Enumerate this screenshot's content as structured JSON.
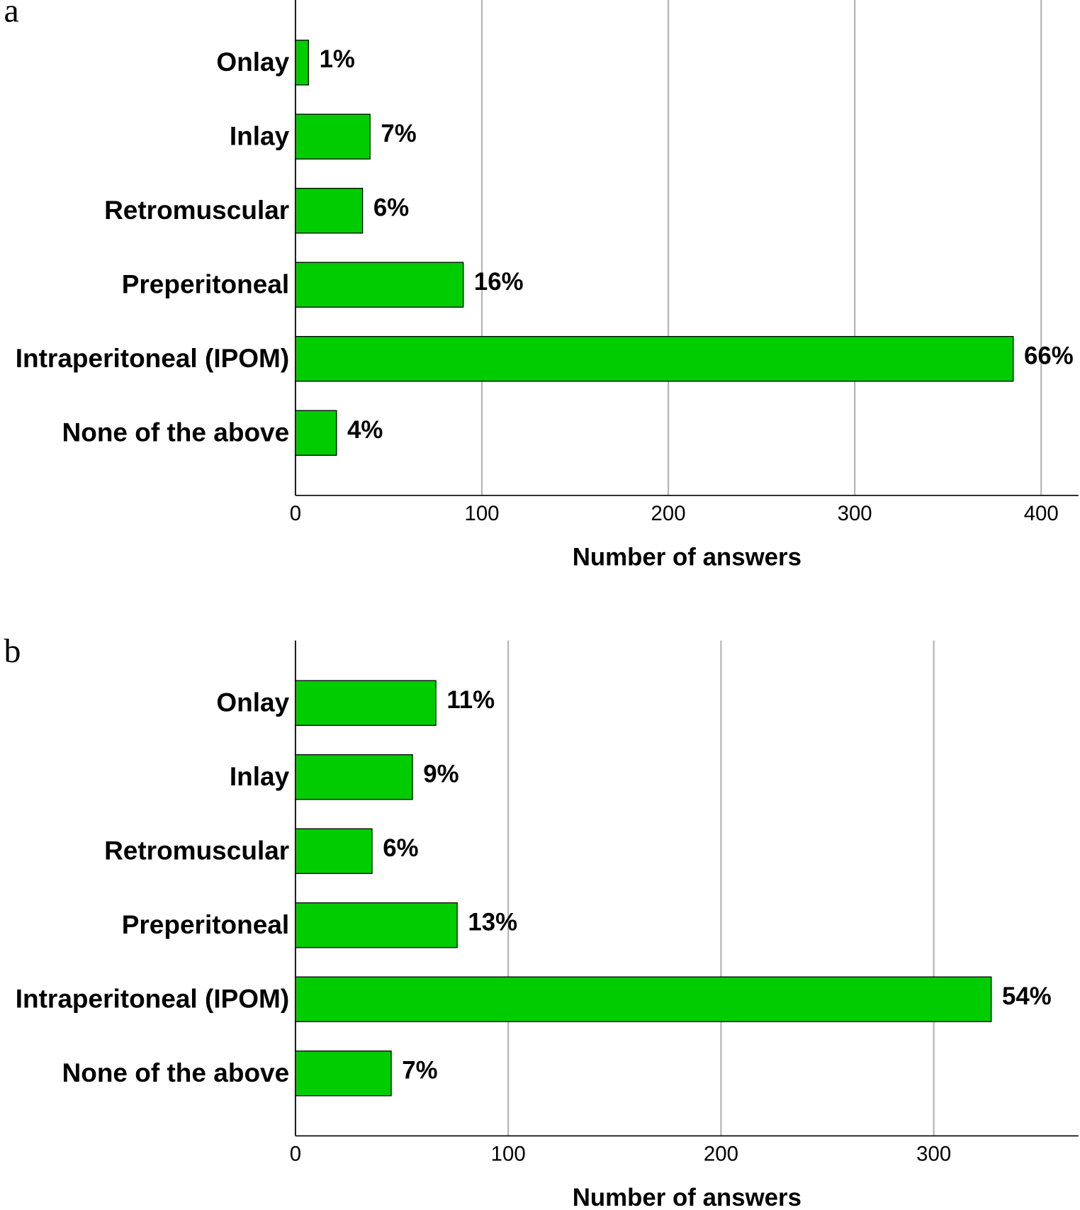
{
  "chart_data": [
    {
      "type": "bar",
      "panel": "a",
      "orientation": "horizontal",
      "categories": [
        "Onlay",
        "Inlay",
        "Retromuscular",
        "Preperitoneal",
        "Intraperitoneal (IPOM)",
        "None of the above"
      ],
      "values": [
        7,
        40,
        36,
        90,
        385,
        22
      ],
      "bar_labels": [
        "1%",
        "7%",
        "6%",
        "16%",
        "66%",
        "4%"
      ],
      "color": "#00cc00",
      "x_label": "Number of answers",
      "xlim": [
        0,
        420
      ],
      "xticks": [
        0,
        100,
        200,
        300,
        400
      ],
      "grid": true
    },
    {
      "type": "bar",
      "panel": "b",
      "orientation": "horizontal",
      "categories": [
        "Onlay",
        "Inlay",
        "Retromuscular",
        "Preperitoneal",
        "Intraperitoneal (IPOM)",
        "None of the above"
      ],
      "values": [
        66,
        55,
        36,
        76,
        327,
        45
      ],
      "bar_labels": [
        "11%",
        "9%",
        "6%",
        "13%",
        "54%",
        "7%"
      ],
      "color": "#00cc00",
      "x_label": "Number of answers",
      "xlim": [
        0,
        368
      ],
      "xticks": [
        0,
        100,
        200,
        300
      ],
      "grid": true
    }
  ]
}
